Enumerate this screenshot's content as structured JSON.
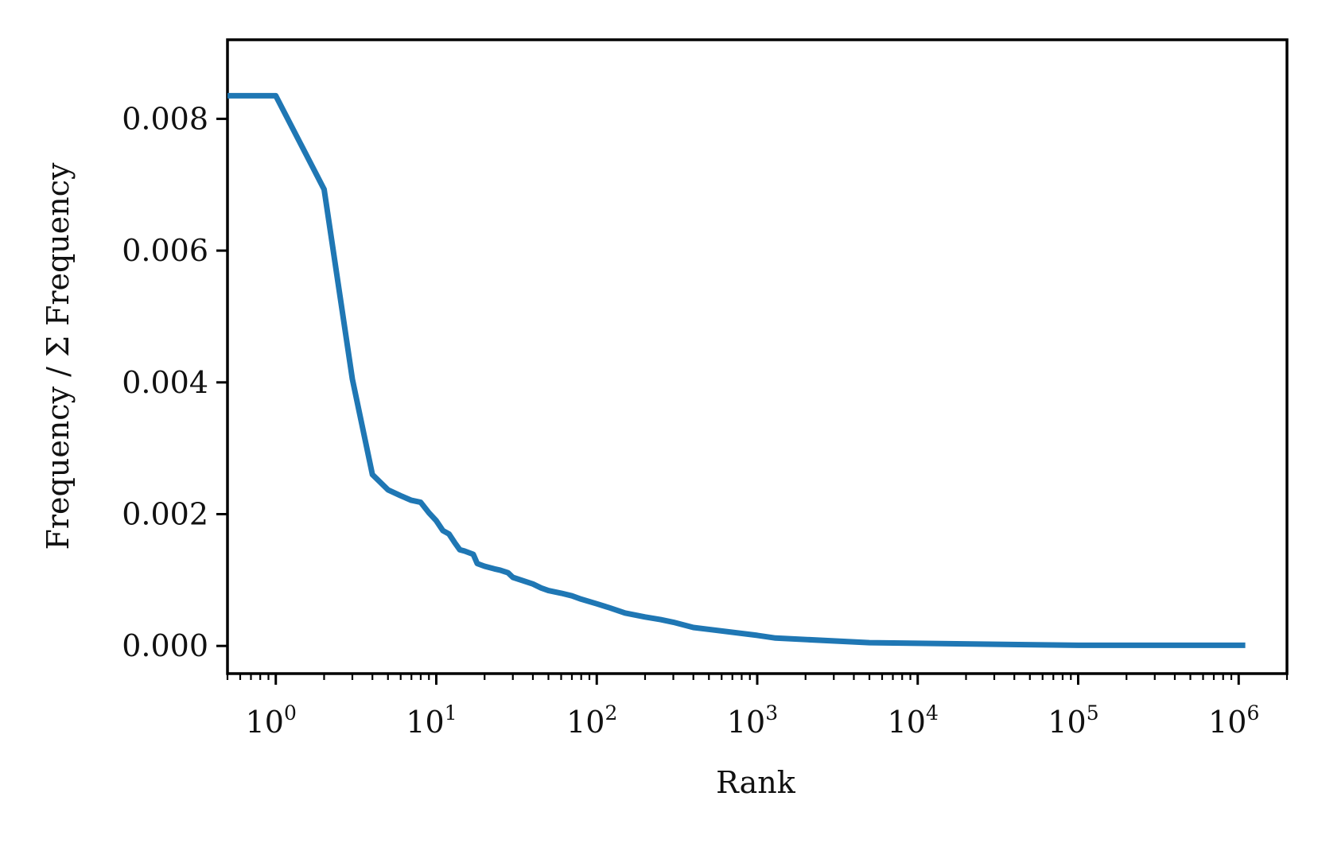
{
  "chart_data": {
    "type": "line",
    "title": "",
    "xlabel": "Rank",
    "ylabel": "Frequency / Σ Frequency",
    "x_scale": "log",
    "xlim": [
      0.5,
      2000000
    ],
    "ylim": [
      -0.00042,
      0.0092
    ],
    "grid": false,
    "legend": "none",
    "x_ticks": [
      {
        "base": "10",
        "exp": "0",
        "value": 1
      },
      {
        "base": "10",
        "exp": "1",
        "value": 10
      },
      {
        "base": "10",
        "exp": "2",
        "value": 100
      },
      {
        "base": "10",
        "exp": "3",
        "value": 1000
      },
      {
        "base": "10",
        "exp": "4",
        "value": 10000
      },
      {
        "base": "10",
        "exp": "5",
        "value": 100000
      },
      {
        "base": "10",
        "exp": "6",
        "value": 1000000
      }
    ],
    "y_ticks": [
      {
        "label": "0.000",
        "value": 0.0
      },
      {
        "label": "0.002",
        "value": 0.002
      },
      {
        "label": "0.004",
        "value": 0.004
      },
      {
        "label": "0.006",
        "value": 0.006
      },
      {
        "label": "0.008",
        "value": 0.008
      }
    ],
    "series": [
      {
        "color": "#1f77b4",
        "x": [
          0.5,
          1,
          2,
          3,
          4,
          5,
          6,
          7,
          8,
          9,
          10,
          11,
          12,
          13,
          14,
          15,
          17,
          18,
          20,
          23,
          25,
          28,
          30,
          40,
          45,
          50,
          60,
          70,
          80,
          100,
          120,
          150,
          200,
          250,
          300,
          400,
          1000,
          1300,
          5000,
          10000,
          100000,
          1100000
        ],
        "y": [
          0.00835,
          0.00835,
          0.00693,
          0.00405,
          0.0026,
          0.00237,
          0.00228,
          0.00221,
          0.00218,
          0.00202,
          0.0019,
          0.00175,
          0.0017,
          0.00157,
          0.00146,
          0.00144,
          0.00139,
          0.00125,
          0.00121,
          0.00117,
          0.00115,
          0.00111,
          0.00104,
          0.00094,
          0.00088,
          0.00084,
          0.0008,
          0.00076,
          0.00071,
          0.00064,
          0.00058,
          0.0005,
          0.00044,
          0.0004,
          0.00036,
          0.00028,
          0.00016,
          0.00012,
          5e-05,
          4e-05,
          1e-05,
          1e-05
        ]
      }
    ]
  }
}
